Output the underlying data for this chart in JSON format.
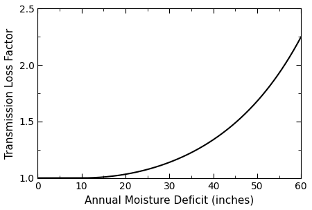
{
  "xlabel": "Annual Moisture Deficit (inches)",
  "ylabel": "Transmission Loss Factor",
  "xlim": [
    0,
    60
  ],
  "ylim": [
    1.0,
    2.5
  ],
  "xticks": [
    0,
    10,
    20,
    30,
    40,
    50,
    60
  ],
  "yticks": [
    1.0,
    1.5,
    2.0,
    2.5
  ],
  "line_color": "#000000",
  "line_width": 1.5,
  "background_color": "#ffffff",
  "x_min": 0,
  "x_max": 60,
  "xlabel_fontsize": 11,
  "ylabel_fontsize": 11,
  "tick_fontsize": 10,
  "curve_k": 0.00012,
  "curve_power": 3.0,
  "curve_x0": 0.0
}
